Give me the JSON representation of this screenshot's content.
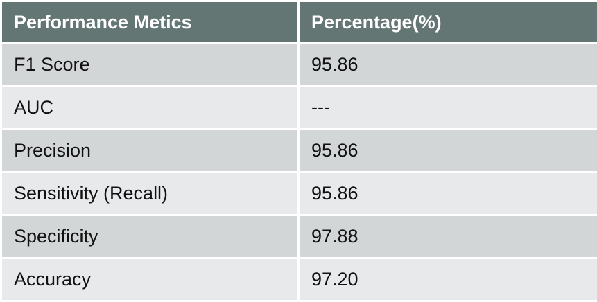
{
  "table": {
    "headers": [
      "Performance Metics",
      "Percentage(%)"
    ],
    "rows": [
      [
        "F1 Score",
        "95.86"
      ],
      [
        "AUC",
        "---"
      ],
      [
        "Precision",
        "95.86"
      ],
      [
        "Sensitivity (Recall)",
        "95.86"
      ],
      [
        "Specificity",
        "97.88"
      ],
      [
        "Accuracy",
        "97.20"
      ]
    ]
  },
  "colors": {
    "header_bg": "#647674",
    "header_text": "#ffffff",
    "row_odd_bg": "#d3d6d6",
    "row_even_bg": "#e8e9ea",
    "border": "#ffffff"
  }
}
